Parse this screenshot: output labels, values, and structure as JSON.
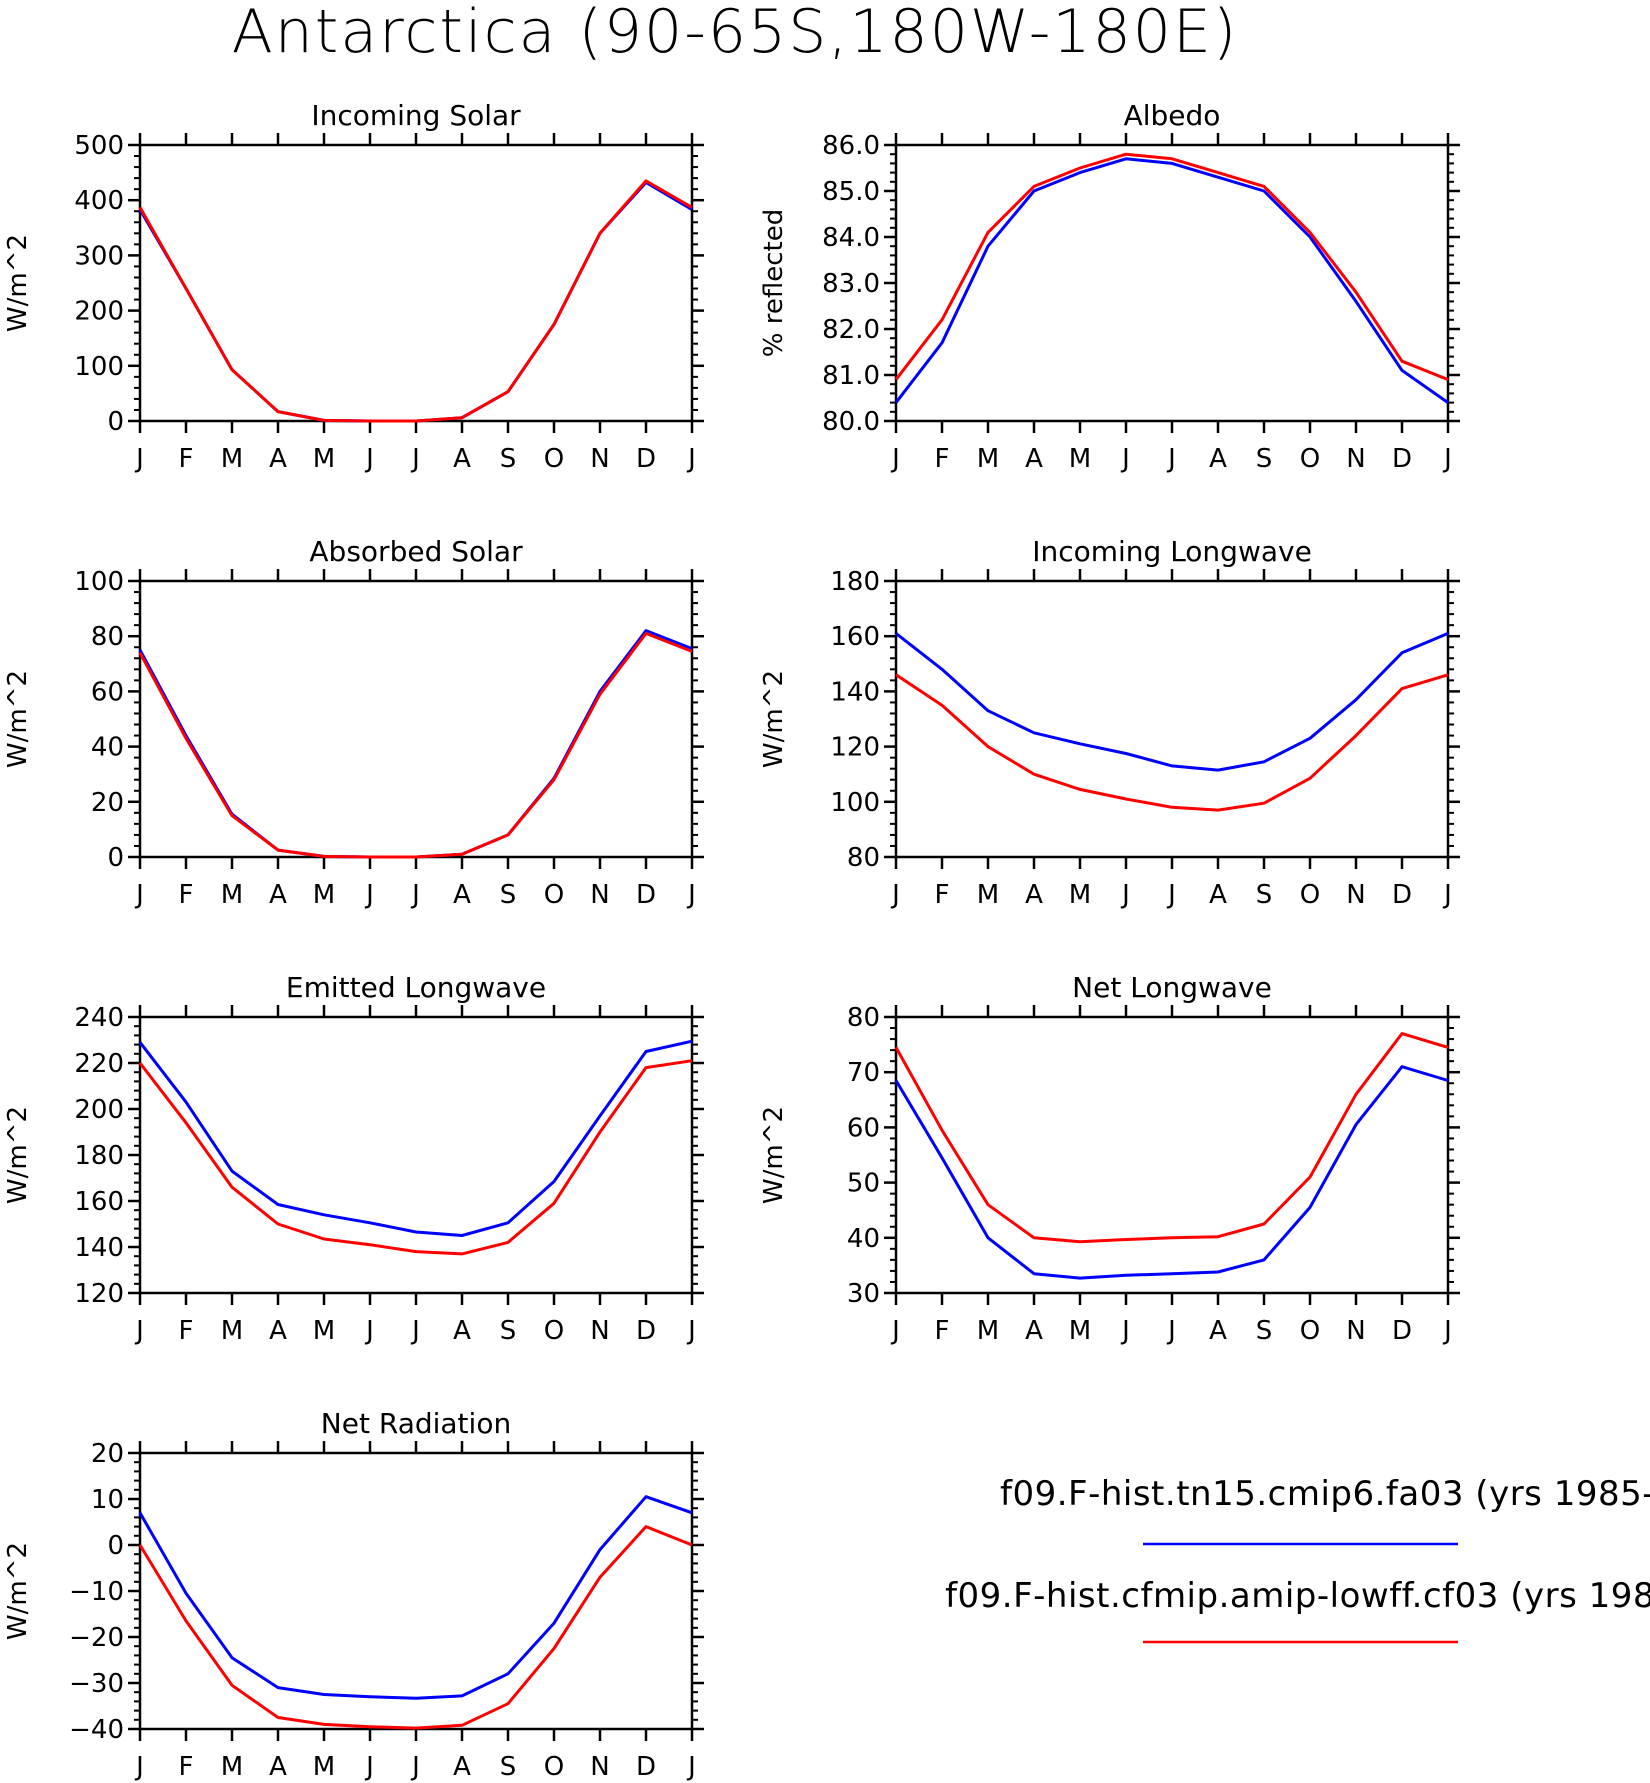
{
  "title": "Antarctica (90-65S,180W-180E)",
  "x_tick_labels": [
    "J",
    "F",
    "M",
    "A",
    "M",
    "J",
    "J",
    "A",
    "S",
    "O",
    "N",
    "D",
    "J"
  ],
  "legend": [
    {
      "label": "f09.F-hist.tn15.cmip6.fa03 (yrs 1985-",
      "color": "#0000ff"
    },
    {
      "label": "f09.F-hist.cfmip.amip-lowff.cf03 (yrs 198",
      "color": "#ff0000"
    }
  ],
  "chart_data": [
    {
      "type": "line",
      "title": "Incoming Solar",
      "ylabel": "W/m^2",
      "ylim": [
        0,
        500
      ],
      "yticks": [
        0,
        100,
        200,
        300,
        400,
        500
      ],
      "ytick_labels": [
        "0",
        "100",
        "200",
        "300",
        "400",
        "500"
      ],
      "x": [
        "J",
        "F",
        "M",
        "A",
        "M",
        "J",
        "J",
        "A",
        "S",
        "O",
        "N",
        "D",
        "J"
      ],
      "series": [
        {
          "color": "#0000ff",
          "values": [
            383,
            240,
            93,
            17,
            1,
            0,
            0,
            6,
            53,
            175,
            340,
            432,
            383
          ]
        },
        {
          "color": "#ff0000",
          "values": [
            387,
            240,
            93,
            17,
            1,
            0,
            0,
            6,
            53,
            175,
            340,
            435,
            387
          ]
        }
      ]
    },
    {
      "type": "line",
      "title": "Albedo",
      "ylabel": "% reflected",
      "ylim": [
        80,
        86
      ],
      "yticks": [
        80,
        81,
        82,
        83,
        84,
        85,
        86
      ],
      "ytick_labels": [
        "80.0",
        "81.0",
        "82.0",
        "83.0",
        "84.0",
        "85.0",
        "86.0"
      ],
      "x": [
        "J",
        "F",
        "M",
        "A",
        "M",
        "J",
        "J",
        "A",
        "S",
        "O",
        "N",
        "D",
        "J"
      ],
      "series": [
        {
          "color": "#0000ff",
          "values": [
            80.4,
            81.7,
            83.8,
            85.0,
            85.4,
            85.7,
            85.6,
            85.3,
            85.0,
            84.0,
            82.6,
            81.1,
            80.4
          ]
        },
        {
          "color": "#ff0000",
          "values": [
            80.9,
            82.2,
            84.1,
            85.1,
            85.5,
            85.8,
            85.7,
            85.4,
            85.1,
            84.1,
            82.8,
            81.3,
            80.9
          ]
        }
      ]
    },
    {
      "type": "line",
      "title": "Absorbed Solar",
      "ylabel": "W/m^2",
      "ylim": [
        0,
        100
      ],
      "yticks": [
        0,
        20,
        40,
        60,
        80,
        100
      ],
      "ytick_labels": [
        "0",
        "20",
        "40",
        "60",
        "80",
        "100"
      ],
      "x": [
        "J",
        "F",
        "M",
        "A",
        "M",
        "J",
        "J",
        "A",
        "S",
        "O",
        "N",
        "D",
        "J"
      ],
      "series": [
        {
          "color": "#0000ff",
          "values": [
            75,
            44,
            15.5,
            2.5,
            0.2,
            0,
            0,
            1,
            8,
            28.5,
            60,
            82,
            75.5
          ]
        },
        {
          "color": "#ff0000",
          "values": [
            74,
            43,
            15,
            2.5,
            0.2,
            0,
            0,
            1,
            8,
            28,
            59,
            81,
            74.5
          ]
        }
      ]
    },
    {
      "type": "line",
      "title": "Incoming Longwave",
      "ylabel": "W/m^2",
      "ylim": [
        80,
        180
      ],
      "yticks": [
        80,
        100,
        120,
        140,
        160,
        180
      ],
      "ytick_labels": [
        "80",
        "100",
        "120",
        "140",
        "160",
        "180"
      ],
      "x": [
        "J",
        "F",
        "M",
        "A",
        "M",
        "J",
        "J",
        "A",
        "S",
        "O",
        "N",
        "D",
        "J"
      ],
      "series": [
        {
          "color": "#0000ff",
          "values": [
            161,
            148,
            133,
            125,
            121,
            117.5,
            113,
            111.5,
            114.5,
            123,
            137,
            154,
            161
          ]
        },
        {
          "color": "#ff0000",
          "values": [
            146,
            135,
            120,
            110,
            104.5,
            101,
            98,
            97,
            99.5,
            108.5,
            124,
            141,
            146
          ]
        }
      ]
    },
    {
      "type": "line",
      "title": "Emitted Longwave",
      "ylabel": "W/m^2",
      "ylim": [
        120,
        240
      ],
      "yticks": [
        120,
        140,
        160,
        180,
        200,
        220,
        240
      ],
      "ytick_labels": [
        "120",
        "140",
        "160",
        "180",
        "200",
        "220",
        "240"
      ],
      "x": [
        "J",
        "F",
        "M",
        "A",
        "M",
        "J",
        "J",
        "A",
        "S",
        "O",
        "N",
        "D",
        "J"
      ],
      "series": [
        {
          "color": "#0000ff",
          "values": [
            229,
            203,
            173,
            158.5,
            154,
            150.5,
            146.5,
            145,
            150.5,
            168.5,
            197,
            225,
            229.5
          ]
        },
        {
          "color": "#ff0000",
          "values": [
            220,
            194,
            166,
            150,
            143.5,
            141,
            138,
            137,
            142,
            159,
            190,
            218,
            221
          ]
        }
      ]
    },
    {
      "type": "line",
      "title": "Net Longwave",
      "ylabel": "W/m^2",
      "ylim": [
        30,
        80
      ],
      "yticks": [
        30,
        40,
        50,
        60,
        70,
        80
      ],
      "ytick_labels": [
        "30",
        "40",
        "50",
        "60",
        "70",
        "80"
      ],
      "x": [
        "J",
        "F",
        "M",
        "A",
        "M",
        "J",
        "J",
        "A",
        "S",
        "O",
        "N",
        "D",
        "J"
      ],
      "series": [
        {
          "color": "#0000ff",
          "values": [
            68.5,
            54.5,
            40,
            33.5,
            32.7,
            33.2,
            33.5,
            33.8,
            36,
            45.5,
            60.5,
            71,
            68.5
          ]
        },
        {
          "color": "#ff0000",
          "values": [
            74.5,
            59.5,
            46,
            40,
            39.3,
            39.7,
            40,
            40.2,
            42.5,
            51,
            66,
            77,
            74.5
          ]
        }
      ]
    },
    {
      "type": "line",
      "title": "Net Radiation",
      "ylabel": "W/m^2",
      "ylim": [
        -40,
        20
      ],
      "yticks": [
        -40,
        -30,
        -20,
        -10,
        0,
        10,
        20
      ],
      "ytick_labels": [
        "−40",
        "−30",
        "−20",
        "−10",
        "0",
        "10",
        "20"
      ],
      "x": [
        "J",
        "F",
        "M",
        "A",
        "M",
        "J",
        "J",
        "A",
        "S",
        "O",
        "N",
        "D",
        "J"
      ],
      "series": [
        {
          "color": "#0000ff",
          "values": [
            7,
            -10.5,
            -24.5,
            -31,
            -32.5,
            -33,
            -33.3,
            -32.8,
            -28,
            -17,
            -1,
            10.5,
            7
          ]
        },
        {
          "color": "#ff0000",
          "values": [
            0,
            -16.5,
            -30.5,
            -37.5,
            -39,
            -39.5,
            -39.8,
            -39.2,
            -34.5,
            -22.5,
            -7,
            4,
            0
          ]
        }
      ]
    }
  ]
}
